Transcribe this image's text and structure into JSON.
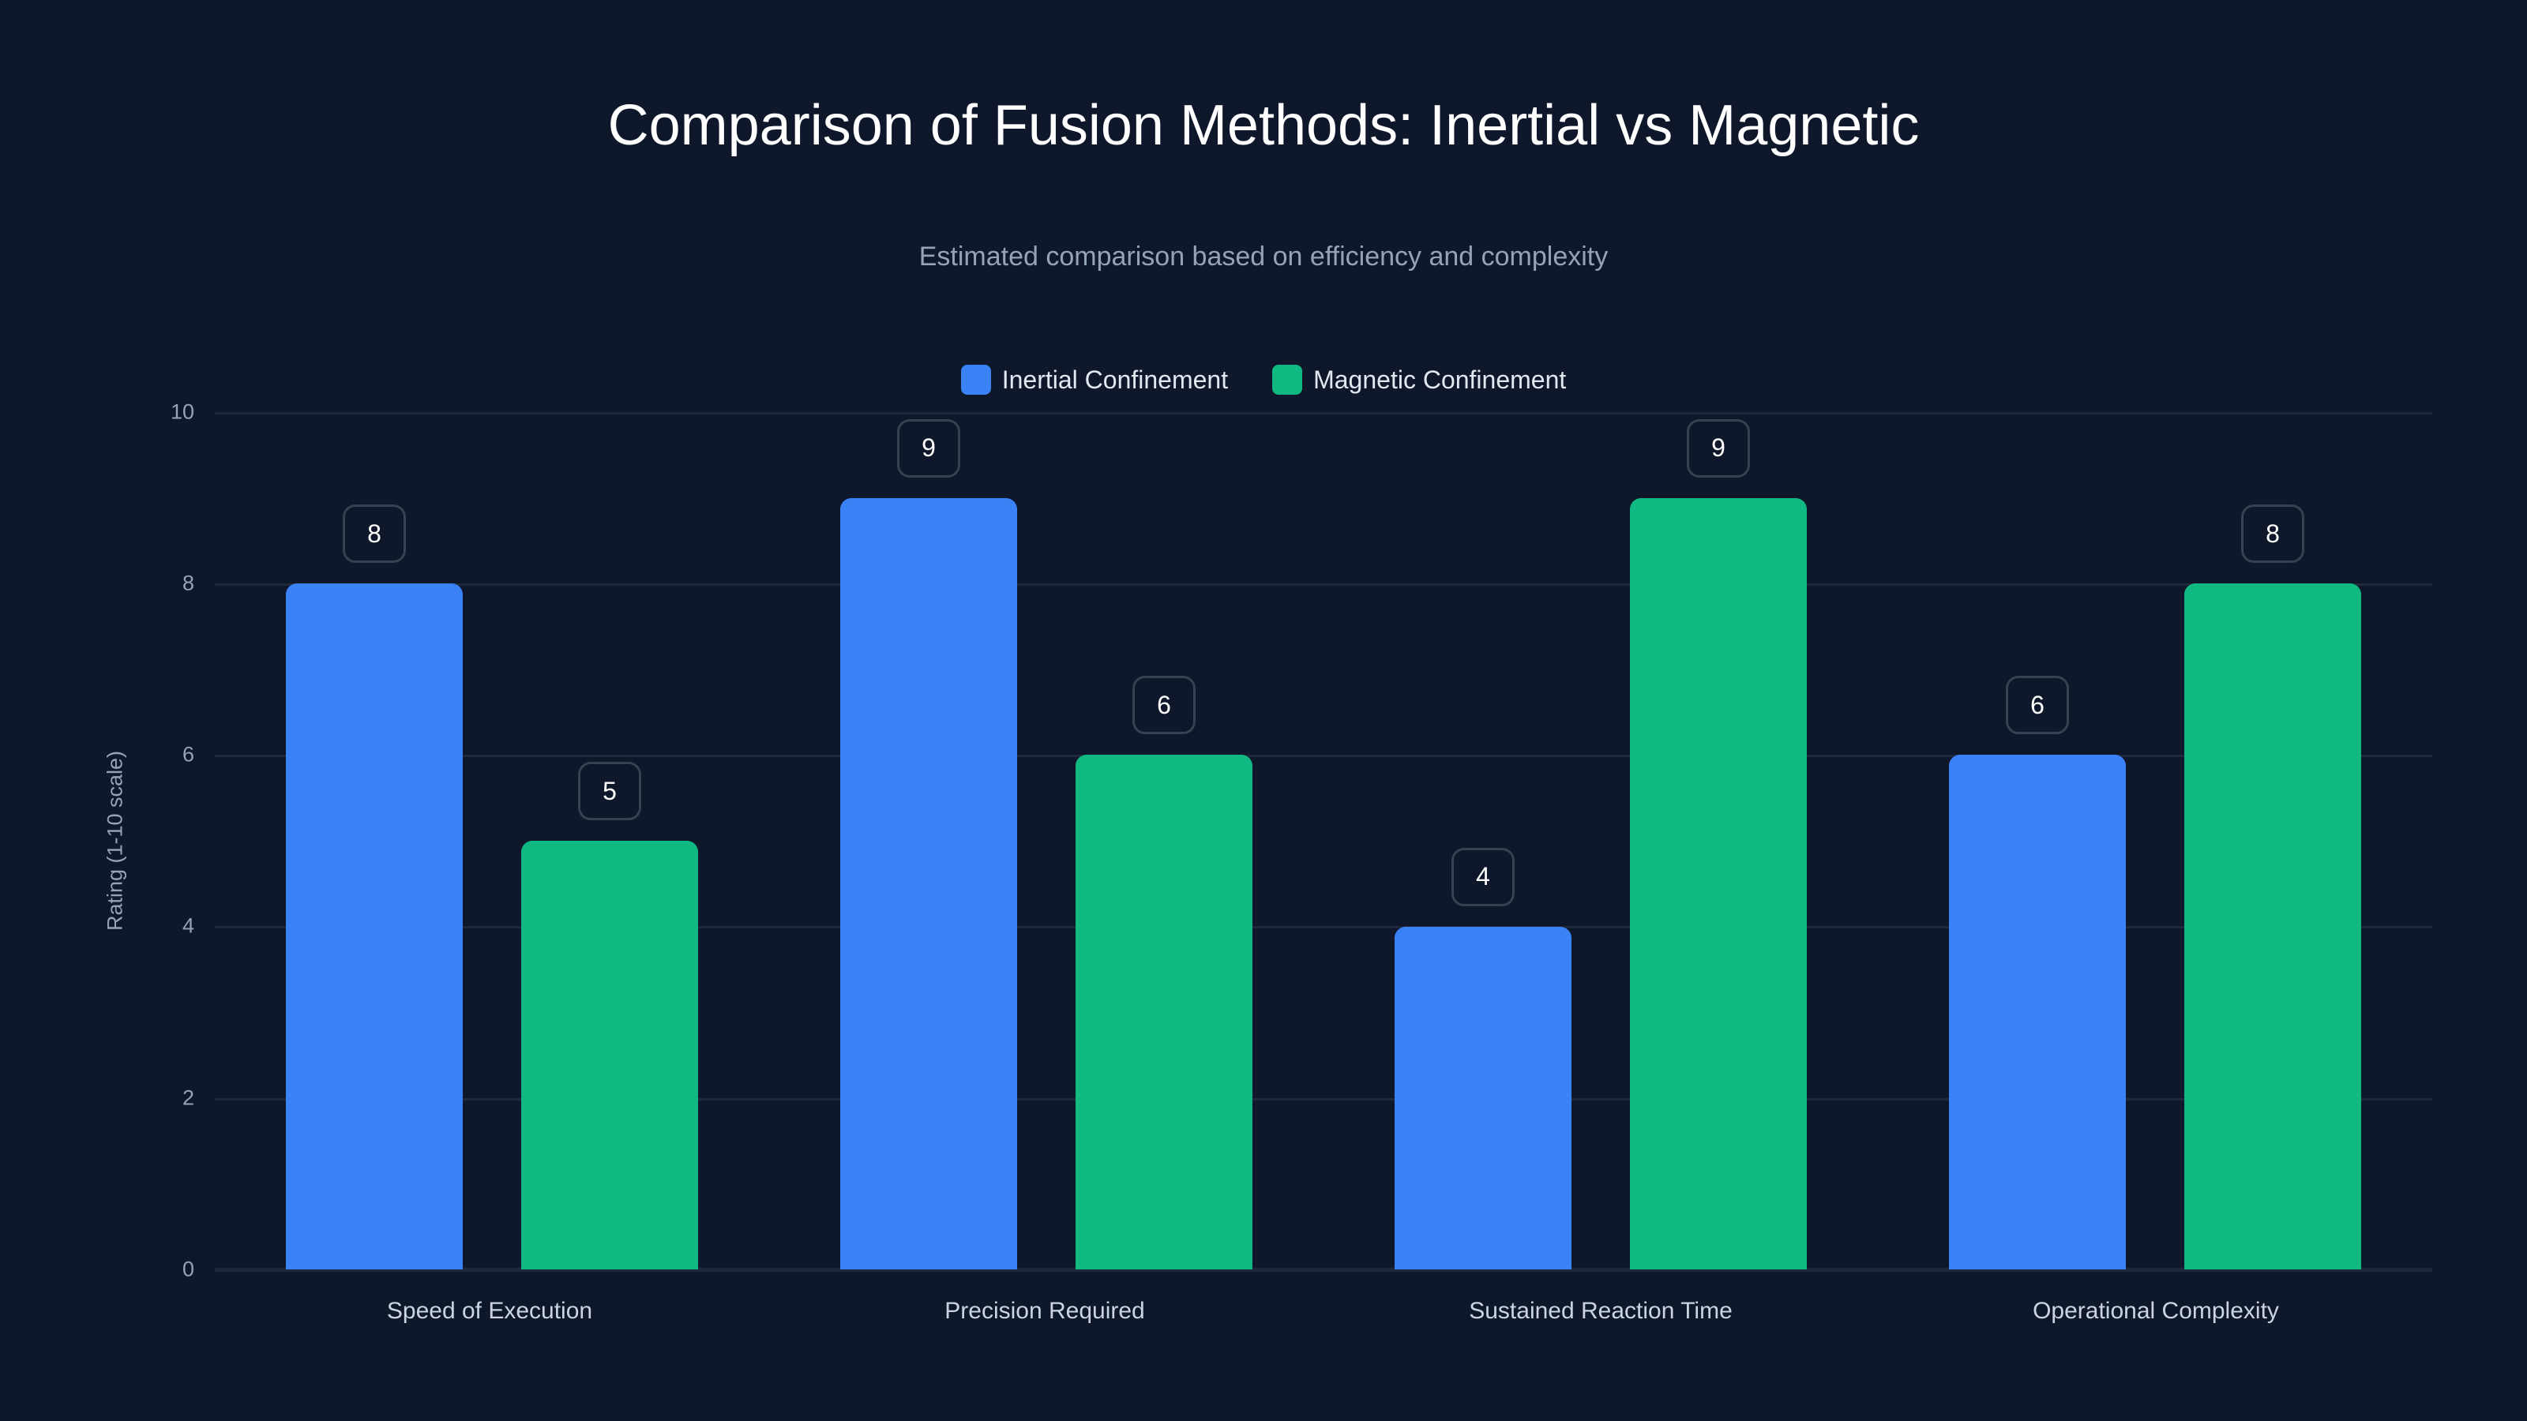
{
  "header": {
    "title": "Comparison of Fusion Methods: Inertial vs Magnetic",
    "subtitle": "Estimated comparison based on efficiency and complexity"
  },
  "legend": [
    {
      "label": "Inertial Confinement",
      "color": "#3b82f6"
    },
    {
      "label": "Magnetic Confinement",
      "color": "#10b981"
    }
  ],
  "axis": {
    "ylabel": "Rating (1-10 scale)",
    "yticks": [
      "0",
      "2",
      "4",
      "6",
      "8",
      "10"
    ]
  },
  "categories": [
    "Speed of Execution",
    "Precision Required",
    "Sustained Reaction Time",
    "Operational Complexity"
  ],
  "chart_data": {
    "type": "bar",
    "title": "Comparison of Fusion Methods: Inertial vs Magnetic",
    "subtitle": "Estimated comparison based on efficiency and complexity",
    "categories": [
      "Speed of Execution",
      "Precision Required",
      "Sustained Reaction Time",
      "Operational Complexity"
    ],
    "series": [
      {
        "name": "Inertial Confinement",
        "color": "#3b82f6",
        "values": [
          8,
          9,
          4,
          6
        ]
      },
      {
        "name": "Magnetic Confinement",
        "color": "#10b981",
        "values": [
          5,
          6,
          9,
          8
        ]
      }
    ],
    "xlabel": "",
    "ylabel": "Rating (1-10 scale)",
    "ylim": [
      0,
      10
    ],
    "yticks": [
      0,
      2,
      4,
      6,
      8,
      10
    ],
    "grid": true,
    "legend_position": "top-center",
    "data_labels": true
  }
}
